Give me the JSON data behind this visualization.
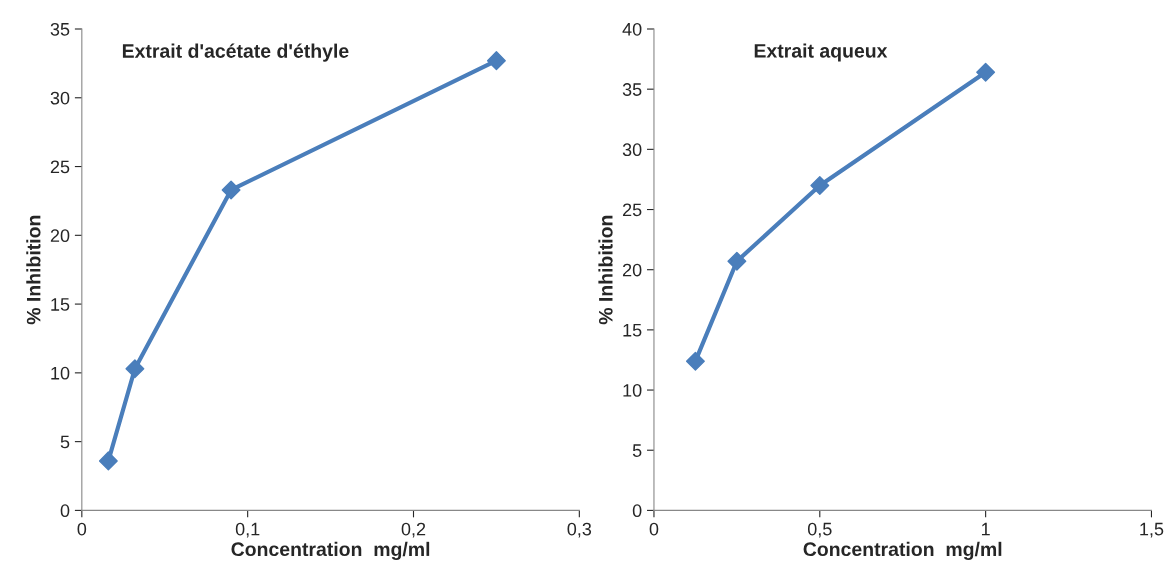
{
  "chart_data": [
    {
      "type": "line",
      "title": "Extrait d'acétate d'éthyle",
      "xlabel": "Concentration  mg/ml",
      "ylabel": "% Inhibition",
      "marker": "diamond",
      "line_style": "solid",
      "grid": false,
      "legend": false,
      "x": [
        0.016,
        0.032,
        0.09,
        0.25
      ],
      "series": [
        {
          "color": "#4a7ebb",
          "values": [
            3.6,
            10.3,
            23.3,
            32.7
          ]
        }
      ],
      "xlim": [
        0,
        0.3
      ],
      "xticks": [
        0,
        {
          "value": 0.1,
          "label": "0,1"
        },
        {
          "value": 0.2,
          "label": "0,2"
        },
        {
          "value": 0.3,
          "label": "0,3"
        }
      ],
      "ylim": [
        0,
        35
      ],
      "yticks": [
        0,
        5,
        10,
        15,
        20,
        25,
        30,
        35
      ]
    },
    {
      "type": "line",
      "title": "Extrait aqueux",
      "xlabel": "Concentration  mg/ml",
      "ylabel": "% Inhibition",
      "marker": "diamond",
      "line_style": "solid",
      "grid": false,
      "legend": false,
      "x": [
        0.125,
        0.25,
        0.5,
        1
      ],
      "series": [
        {
          "color": "#4a7ebb",
          "values": [
            12.4,
            20.7,
            27.0,
            36.4
          ]
        }
      ],
      "xlim": [
        0,
        1.5
      ],
      "xticks": [
        0,
        {
          "value": 0.5,
          "label": "0,5"
        },
        1,
        {
          "value": 1.5,
          "label": "1,5"
        }
      ],
      "ylim": [
        0,
        40
      ],
      "yticks": [
        0,
        5,
        10,
        15,
        20,
        25,
        30,
        35,
        40
      ]
    }
  ]
}
